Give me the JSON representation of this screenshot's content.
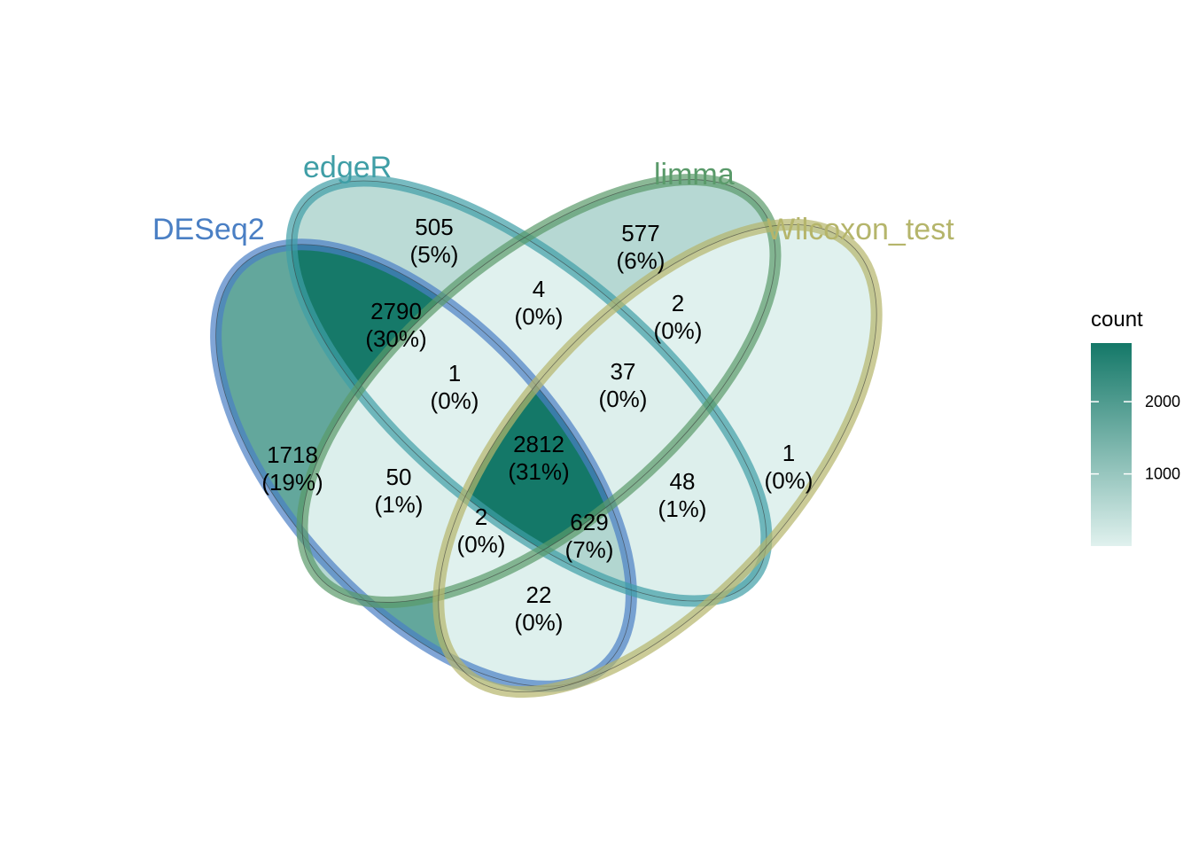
{
  "chart_data": {
    "type": "venn",
    "sets": [
      {
        "name": "DESeq2",
        "color": "#4a7fc4"
      },
      {
        "name": "edgeR",
        "color": "#3f9ea6"
      },
      {
        "name": "limma",
        "color": "#5a9a6a"
      },
      {
        "name": "Wilcoxon_test",
        "color": "#b5b56b"
      }
    ],
    "regions": [
      {
        "sets": [
          "edgeR"
        ],
        "count": "505",
        "percent": "(5%)"
      },
      {
        "sets": [
          "limma"
        ],
        "count": "577",
        "percent": "(6%)"
      },
      {
        "sets": [
          "DESeq2",
          "edgeR"
        ],
        "count": "2790",
        "percent": "(30%)"
      },
      {
        "sets": [
          "edgeR",
          "limma"
        ],
        "count": "4",
        "percent": "(0%)"
      },
      {
        "sets": [
          "limma",
          "Wilcoxon_test"
        ],
        "count": "2",
        "percent": "(0%)"
      },
      {
        "sets": [
          "DESeq2",
          "edgeR",
          "limma"
        ],
        "count": "1",
        "percent": "(0%)"
      },
      {
        "sets": [
          "edgeR",
          "limma",
          "Wilcoxon_test"
        ],
        "count": "37",
        "percent": "(0%)"
      },
      {
        "sets": [
          "DESeq2"
        ],
        "count": "1718",
        "percent": "(19%)"
      },
      {
        "sets": [
          "DESeq2",
          "limma"
        ],
        "count": "50",
        "percent": "(1%)"
      },
      {
        "sets": [
          "DESeq2",
          "edgeR",
          "limma",
          "Wilcoxon_test"
        ],
        "count": "2812",
        "percent": "(31%)"
      },
      {
        "sets": [
          "edgeR",
          "Wilcoxon_test"
        ],
        "count": "48",
        "percent": "(1%)"
      },
      {
        "sets": [
          "Wilcoxon_test"
        ],
        "count": "1",
        "percent": "(0%)"
      },
      {
        "sets": [
          "DESeq2",
          "limma",
          "Wilcoxon_test"
        ],
        "count": "2",
        "percent": "(0%)"
      },
      {
        "sets": [
          "DESeq2",
          "edgeR",
          "Wilcoxon_test"
        ],
        "count": "629",
        "percent": "(7%)"
      },
      {
        "sets": [
          "DESeq2",
          "Wilcoxon_test"
        ],
        "count": "22",
        "percent": "(0%)"
      }
    ],
    "legend": {
      "title": "count",
      "ticks": [
        1000,
        2000
      ],
      "range": [
        1,
        2812
      ],
      "low_color": "#e0f1ee",
      "high_color": "#147868"
    }
  }
}
